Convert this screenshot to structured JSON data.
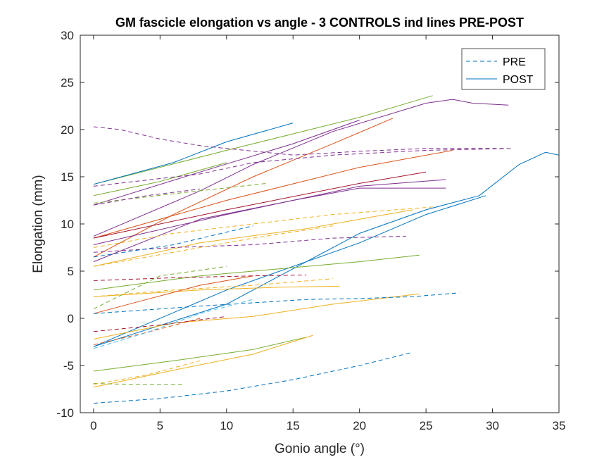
{
  "chart_data": {
    "type": "line",
    "title": "GM fascicle elongation vs angle - 3 CONTROLS ind lines PRE-POST",
    "xlabel": "Gonio angle (°)",
    "ylabel": "Elongation (mm)",
    "xlim": [
      -1,
      35
    ],
    "ylim": [
      -10,
      30
    ],
    "xticks": [
      0,
      5,
      10,
      15,
      20,
      25,
      30,
      35
    ],
    "yticks": [
      -10,
      -5,
      0,
      5,
      10,
      15,
      20,
      25,
      30
    ],
    "grid": false,
    "legend": {
      "position": "top-right",
      "entries": [
        {
          "label": "PRE",
          "style": "dashed"
        },
        {
          "label": "POST",
          "style": "solid"
        }
      ]
    },
    "series": [
      {
        "style": "solid",
        "color": "#77AC30",
        "x": [
          0,
          10,
          20,
          25.5
        ],
        "y": [
          14.2,
          17.8,
          21.3,
          23.6
        ]
      },
      {
        "style": "solid",
        "color": "#0072BD",
        "x": [
          0,
          6,
          10,
          15
        ],
        "y": [
          14.2,
          16.5,
          18.7,
          20.7
        ]
      },
      {
        "style": "solid",
        "color": "#7E2F8E",
        "x": [
          0,
          8,
          12,
          18,
          25,
          27,
          28.5,
          31.2
        ],
        "y": [
          8.7,
          13.5,
          16.3,
          19.8,
          22.8,
          23.2,
          22.8,
          22.6
        ]
      },
      {
        "style": "solid",
        "color": "#D95319",
        "x": [
          0,
          6,
          12,
          18,
          22.5
        ],
        "y": [
          6.5,
          11,
          15,
          18.5,
          21.2
        ]
      },
      {
        "style": "solid",
        "color": "#7E2F8E",
        "x": [
          0,
          8,
          15,
          20
        ],
        "y": [
          12,
          15.5,
          18.5,
          21
        ]
      },
      {
        "style": "solid",
        "color": "#77AC30",
        "x": [
          0,
          5,
          10
        ],
        "y": [
          13,
          14.5,
          16.5
        ]
      },
      {
        "style": "solid",
        "color": "#D95319",
        "x": [
          0,
          10,
          20,
          27
        ],
        "y": [
          8.5,
          12.5,
          16,
          17.8
        ]
      },
      {
        "style": "solid",
        "color": "#7E2F8E",
        "x": [
          0,
          10,
          20,
          26.5
        ],
        "y": [
          7.8,
          11,
          14,
          14.7
        ]
      },
      {
        "style": "solid",
        "color": "#A2142F",
        "x": [
          0,
          10,
          20,
          25
        ],
        "y": [
          8.5,
          11.5,
          14.3,
          15.5
        ]
      },
      {
        "style": "solid",
        "color": "#7E2F8E",
        "x": [
          0,
          8,
          15,
          20,
          26.5
        ],
        "y": [
          6,
          10.5,
          12.5,
          13.8,
          13.8
        ]
      },
      {
        "style": "solid",
        "color": "#0072BD",
        "x": [
          0,
          10,
          16,
          20,
          25,
          29,
          32,
          34,
          35
        ],
        "y": [
          -3,
          1.5,
          6,
          9,
          11.5,
          13,
          16.3,
          17.6,
          17.3
        ]
      },
      {
        "style": "solid",
        "color": "#0072BD",
        "x": [
          0,
          10,
          20,
          25,
          29.5
        ],
        "y": [
          -3,
          3,
          8,
          11,
          13
        ]
      },
      {
        "style": "solid",
        "color": "#EDB120",
        "x": [
          0,
          8,
          16,
          20,
          24
        ],
        "y": [
          5.5,
          8,
          9.5,
          10.5,
          11.5
        ]
      },
      {
        "style": "solid",
        "color": "#77AC30",
        "x": [
          0,
          8,
          16,
          20,
          24.5
        ],
        "y": [
          3,
          4.5,
          5.5,
          6,
          6.7
        ]
      },
      {
        "style": "solid",
        "color": "#EDB120",
        "x": [
          0,
          8,
          14,
          18.5
        ],
        "y": [
          2.3,
          3,
          3.3,
          3.4
        ]
      },
      {
        "style": "solid",
        "color": "#D95319",
        "x": [
          0,
          4,
          8,
          12
        ],
        "y": [
          0.5,
          2,
          3.5,
          4.5
        ]
      },
      {
        "style": "solid",
        "color": "#EDB120",
        "x": [
          0,
          6,
          12,
          18,
          24.5
        ],
        "y": [
          -2.2,
          -0.5,
          0.2,
          1.5,
          2.6
        ]
      },
      {
        "style": "solid",
        "color": "#77AC30",
        "x": [
          0,
          6,
          12,
          16
        ],
        "y": [
          -5.6,
          -4.5,
          -3.3,
          -2
        ]
      },
      {
        "style": "solid",
        "color": "#EDB120",
        "x": [
          0,
          6,
          12,
          16.5
        ],
        "y": [
          -7.3,
          -5.5,
          -3.8,
          -1.8
        ]
      },
      {
        "style": "dashed",
        "color": "#7E2F8E",
        "x": [
          0,
          2,
          5,
          8,
          10,
          15,
          20,
          25,
          31
        ],
        "y": [
          20.3,
          20,
          19,
          18.3,
          18,
          17.3,
          17.7,
          18,
          18
        ]
      },
      {
        "style": "dashed",
        "color": "#7E2F8E",
        "x": [
          0,
          8,
          12,
          18,
          25,
          31.5
        ],
        "y": [
          14,
          15.3,
          16.5,
          17.3,
          17.8,
          18
        ]
      },
      {
        "style": "dashed",
        "color": "#77AC30",
        "x": [
          0,
          6,
          13
        ],
        "y": [
          12.2,
          13.2,
          14.3
        ]
      },
      {
        "style": "dashed",
        "color": "#7E2F8E",
        "x": [
          0,
          4,
          8
        ],
        "y": [
          12,
          13,
          13.7
        ]
      },
      {
        "style": "dashed",
        "color": "#EDB120",
        "x": [
          0,
          6,
          12,
          18,
          25.5
        ],
        "y": [
          7.5,
          9,
          10,
          11,
          11.8
        ]
      },
      {
        "style": "dashed",
        "color": "#7E2F8E",
        "x": [
          0,
          6,
          12,
          18,
          23.5
        ],
        "y": [
          7,
          7.5,
          7.8,
          8.5,
          8.7
        ]
      },
      {
        "style": "dashed",
        "color": "#0072BD",
        "x": [
          0,
          6,
          12
        ],
        "y": [
          6.5,
          7.8,
          9.8
        ]
      },
      {
        "style": "dashed",
        "color": "#EDB120",
        "x": [
          0,
          6,
          12,
          18
        ],
        "y": [
          5.5,
          7,
          8.5,
          9.8
        ]
      },
      {
        "style": "dashed",
        "color": "#A2142F",
        "x": [
          0,
          6,
          12,
          16
        ],
        "y": [
          4,
          4.3,
          4.5,
          4.6
        ]
      },
      {
        "style": "dashed",
        "color": "#77AC30",
        "x": [
          0,
          5,
          10
        ],
        "y": [
          1,
          4.5,
          5.5
        ]
      },
      {
        "style": "dashed",
        "color": "#EDB120",
        "x": [
          0,
          6,
          12,
          18
        ],
        "y": [
          2.3,
          3,
          3.5,
          4.2
        ]
      },
      {
        "style": "dashed",
        "color": "#0072BD",
        "x": [
          0,
          8,
          16,
          20,
          24,
          27.5
        ],
        "y": [
          0.5,
          1.3,
          2,
          2.1,
          2.3,
          2.7
        ]
      },
      {
        "style": "dashed",
        "color": "#A2142F",
        "x": [
          0,
          5,
          10
        ],
        "y": [
          -1.4,
          -0.7,
          0.2
        ]
      },
      {
        "style": "dashed",
        "color": "#D95319",
        "x": [
          0,
          4,
          8
        ],
        "y": [
          -2.8,
          -1.5,
          0
        ]
      },
      {
        "style": "dashed",
        "color": "#4DBEEE",
        "x": [
          0,
          4,
          8,
          12
        ],
        "y": [
          -3.2,
          -1.5,
          0.5,
          2
        ]
      },
      {
        "style": "dashed",
        "color": "#77AC30",
        "x": [
          0,
          3,
          6.7
        ],
        "y": [
          -6.9,
          -7,
          -7
        ]
      },
      {
        "style": "dashed",
        "color": "#EDB120",
        "x": [
          0,
          4,
          8
        ],
        "y": [
          -7,
          -6,
          -4.5
        ]
      },
      {
        "style": "dashed",
        "color": "#0072BD",
        "x": [
          0,
          5,
          10,
          15,
          20,
          24
        ],
        "y": [
          -9,
          -8.5,
          -7.7,
          -6.5,
          -5,
          -3.6
        ]
      }
    ]
  }
}
